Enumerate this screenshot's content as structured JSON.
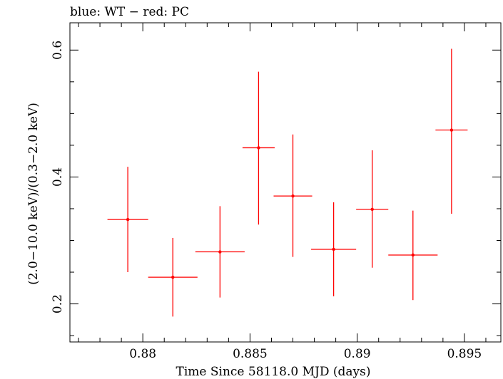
{
  "chart_data": {
    "type": "scatter",
    "title": "blue: WT − red: PC",
    "xlabel": "Time Since 58118.0 MJD (days)",
    "ylabel": "(2.0−10.0 keV)/(0.3−2.0 keV)",
    "xlim": [
      0.8766,
      0.8967
    ],
    "ylim": [
      0.14,
      0.643
    ],
    "x_ticks": [
      0.88,
      0.885,
      0.89,
      0.895
    ],
    "x_tick_labels": [
      "0.88",
      "0.885",
      "0.89",
      "0.895"
    ],
    "y_ticks": [
      0.2,
      0.4,
      0.6
    ],
    "y_tick_labels": [
      "0.2",
      "0.4",
      "0.6"
    ],
    "grid": false,
    "series": [
      {
        "color": "#ff0000",
        "points": [
          {
            "x": 0.8793,
            "xerr": 0.00095,
            "y": 0.333,
            "ylo": 0.25,
            "yhi": 0.416
          },
          {
            "x": 0.8814,
            "xerr": 0.00115,
            "y": 0.242,
            "ylo": 0.18,
            "yhi": 0.304
          },
          {
            "x": 0.8836,
            "xerr": 0.00115,
            "y": 0.282,
            "ylo": 0.21,
            "yhi": 0.354
          },
          {
            "x": 0.8854,
            "xerr": 0.00075,
            "y": 0.446,
            "ylo": 0.325,
            "yhi": 0.566
          },
          {
            "x": 0.887,
            "xerr": 0.0009,
            "y": 0.37,
            "ylo": 0.274,
            "yhi": 0.467
          },
          {
            "x": 0.8889,
            "xerr": 0.00105,
            "y": 0.286,
            "ylo": 0.212,
            "yhi": 0.36
          },
          {
            "x": 0.8907,
            "xerr": 0.00075,
            "y": 0.349,
            "ylo": 0.257,
            "yhi": 0.442
          },
          {
            "x": 0.8926,
            "xerr": 0.00115,
            "y": 0.277,
            "ylo": 0.206,
            "yhi": 0.347
          },
          {
            "x": 0.8944,
            "xerr": 0.00075,
            "y": 0.474,
            "ylo": 0.342,
            "yhi": 0.602
          }
        ]
      }
    ]
  }
}
